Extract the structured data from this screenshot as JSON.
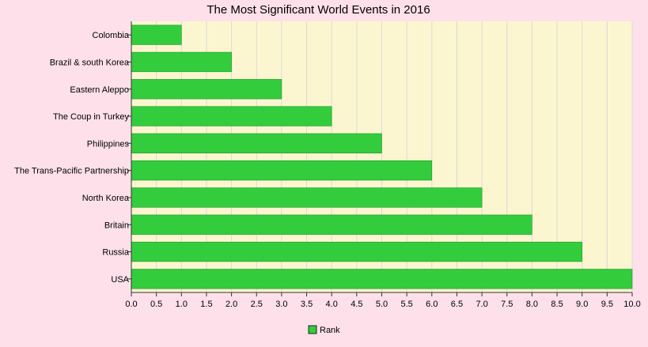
{
  "colors": {
    "page_background": "#fde0ea",
    "plot_background": "#fcf6d0",
    "bar_fill": "#33cc3d",
    "bar_stroke": "#1f9a26",
    "grid": "#d9d9d9",
    "axis": "#333333",
    "text": "#000000"
  },
  "chart_data": {
    "type": "bar",
    "orientation": "horizontal",
    "title": "The Most Significant World Events in 2016",
    "xlabel": "",
    "ylabel": "",
    "xlim": [
      0,
      10
    ],
    "x_ticks": [
      "0.0",
      "0.5",
      "1.0",
      "1.5",
      "2.0",
      "2.5",
      "3.0",
      "3.5",
      "4.0",
      "4.5",
      "5.0",
      "5.5",
      "6.0",
      "6.5",
      "7.0",
      "7.5",
      "8.0",
      "8.5",
      "9.0",
      "9.5",
      "10.0"
    ],
    "grid": "vertical",
    "legend_position": "bottom",
    "categories": [
      "Colombia",
      "Brazil & south Korea",
      "Eastern Aleppo",
      "The Coup in Turkey",
      "Philippines",
      "The Trans-Pacific Partnership",
      "North Korea",
      "Britain",
      "Russia",
      "USA"
    ],
    "series": [
      {
        "name": "Rank",
        "values": [
          1,
          2,
          3,
          4,
          5,
          6,
          7,
          8,
          9,
          10
        ]
      }
    ]
  }
}
